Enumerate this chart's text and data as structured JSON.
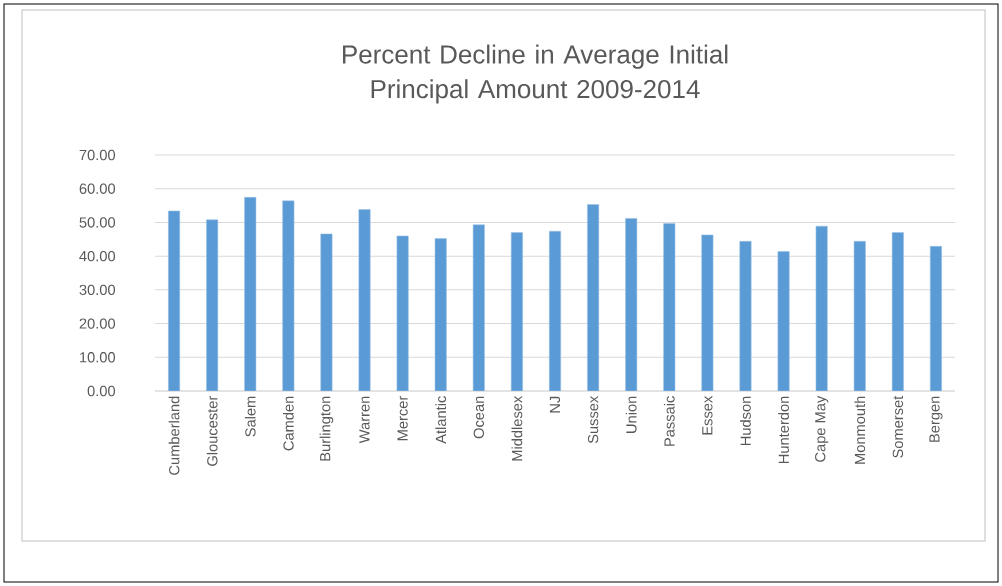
{
  "chart_data": {
    "type": "bar",
    "title": "Percent Decline in Average Initial Principal Amount 2009-2014",
    "categories": [
      "Cumberland",
      "Gloucester",
      "Salem",
      "Camden",
      "Burlington",
      "Warren",
      "Mercer",
      "Atlantic",
      "Ocean",
      "Middlesex",
      "NJ",
      "Sussex",
      "Union",
      "Passaic",
      "Essex",
      "Hudson",
      "Hunterdon",
      "Cape May",
      "Monmouth",
      "Somerset",
      "Bergen"
    ],
    "values": [
      53.4,
      50.8,
      57.5,
      56.4,
      46.6,
      53.8,
      46.0,
      45.2,
      49.3,
      47.0,
      47.4,
      55.3,
      51.2,
      49.7,
      46.3,
      44.4,
      41.4,
      48.9,
      44.4,
      47.0,
      42.9
    ],
    "color": "#5b9bd5",
    "ylim": [
      0,
      70
    ],
    "yticks": [
      {
        "value": 0,
        "label": "0.00"
      },
      {
        "value": 10,
        "label": "10.00"
      },
      {
        "value": 20,
        "label": "20.00"
      },
      {
        "value": 30,
        "label": "30.00"
      },
      {
        "value": 40,
        "label": "40.00"
      },
      {
        "value": 50,
        "label": "50.00"
      },
      {
        "value": 60,
        "label": "60.00"
      },
      {
        "value": 70,
        "label": "70.00"
      }
    ],
    "grid": "y"
  }
}
